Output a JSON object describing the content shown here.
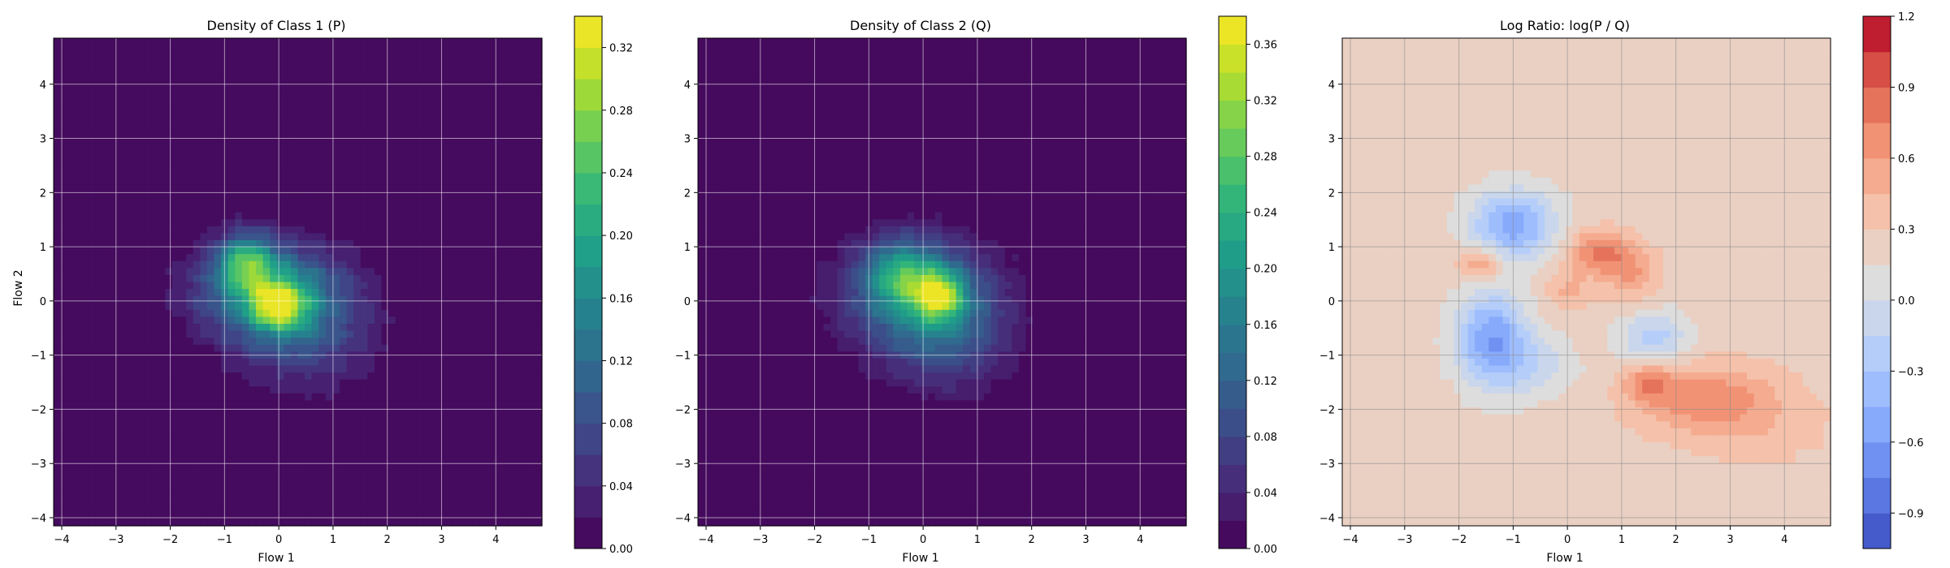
{
  "figure": {
    "panels": [
      {
        "title": "Density of Class 1 (P)",
        "xlabel": "Flow 1",
        "ylabel": "Flow 2"
      },
      {
        "title": "Density of Class 2 (Q)",
        "xlabel": "Flow 1",
        "ylabel": ""
      },
      {
        "title": "Log Ratio: log(P / Q)",
        "xlabel": "Flow 1",
        "ylabel": ""
      }
    ]
  },
  "chart_data": [
    {
      "type": "heatmap",
      "title": "Density of Class 1 (P)",
      "xlabel": "Flow 1",
      "ylabel": "Flow 2",
      "xlim": [
        -4.15,
        4.85
      ],
      "ylim": [
        -4.15,
        4.85
      ],
      "xticks": [
        -4,
        -3,
        -2,
        -1,
        0,
        1,
        2,
        3,
        4
      ],
      "yticks": [
        -4,
        -3,
        -2,
        -1,
        0,
        1,
        2,
        3,
        4
      ],
      "grid": true,
      "colormap": "viridis",
      "colorbar": {
        "min": 0.0,
        "max": 0.34,
        "ticks": [
          0.0,
          0.04,
          0.08,
          0.12,
          0.16,
          0.2,
          0.24,
          0.28,
          0.32
        ],
        "levels": 17
      },
      "description_values": {
        "peak_location": [
          0.0,
          0.0
        ],
        "peak_density": 0.33,
        "spread_direction": "negative correlation (upper-left to lower-right)"
      },
      "blobs": [
        {
          "cx": -0.6,
          "cy": 0.7,
          "amp": 0.17,
          "sx": 0.35,
          "sy": 0.35
        },
        {
          "cx": 0.0,
          "cy": -0.1,
          "amp": 0.2,
          "sx": 0.35,
          "sy": 0.3
        },
        {
          "cx": -0.2,
          "cy": 0.2,
          "amp": 0.16,
          "sx": 0.9,
          "sy": 0.6
        },
        {
          "cx": 0.5,
          "cy": -0.6,
          "amp": 0.07,
          "sx": 0.9,
          "sy": 0.7
        }
      ]
    },
    {
      "type": "heatmap",
      "title": "Density of Class 2 (Q)",
      "xlabel": "Flow 1",
      "ylabel": "",
      "xlim": [
        -4.15,
        4.85
      ],
      "ylim": [
        -4.15,
        4.85
      ],
      "xticks": [
        -4,
        -3,
        -2,
        -1,
        0,
        1,
        2,
        3,
        4
      ],
      "yticks": [
        -4,
        -3,
        -2,
        -1,
        0,
        1,
        2,
        3,
        4
      ],
      "grid": true,
      "colormap": "viridis",
      "colorbar": {
        "min": 0.0,
        "max": 0.38,
        "ticks": [
          0.0,
          0.04,
          0.08,
          0.12,
          0.16,
          0.2,
          0.24,
          0.28,
          0.32,
          0.36
        ],
        "levels": 19
      },
      "description_values": {
        "peak_location": [
          0.3,
          0.1
        ],
        "peak_density": 0.37,
        "spread_direction": "negative correlation (upper-left to lower-right)"
      },
      "blobs": [
        {
          "cx": 0.3,
          "cy": 0.1,
          "amp": 0.22,
          "sx": 0.3,
          "sy": 0.3
        },
        {
          "cx": -0.4,
          "cy": 0.5,
          "amp": 0.14,
          "sx": 0.45,
          "sy": 0.4
        },
        {
          "cx": -0.1,
          "cy": 0.1,
          "amp": 0.16,
          "sx": 0.9,
          "sy": 0.7
        },
        {
          "cx": 0.5,
          "cy": -0.7,
          "amp": 0.07,
          "sx": 0.8,
          "sy": 0.7
        }
      ]
    },
    {
      "type": "heatmap",
      "title": "Log Ratio: log(P / Q)",
      "xlabel": "Flow 1",
      "ylabel": "",
      "xlim": [
        -4.15,
        4.85
      ],
      "ylim": [
        -4.15,
        4.85
      ],
      "xticks": [
        -4,
        -3,
        -2,
        -1,
        0,
        1,
        2,
        3,
        4
      ],
      "yticks": [
        -4,
        -3,
        -2,
        -1,
        0,
        1,
        2,
        3,
        4
      ],
      "grid": true,
      "colormap": "coolwarm",
      "colorbar": {
        "min": -1.05,
        "max": 1.2,
        "ticks": [
          -0.9,
          -0.6,
          -0.3,
          0.0,
          0.3,
          0.6,
          0.9,
          1.2
        ],
        "tick_labels": [
          "−0.9",
          "−0.6",
          "−0.3",
          "0.0",
          "0.3",
          "0.6",
          "0.9",
          "1.2"
        ],
        "levels": 15
      },
      "description_values": {
        "background_value": 0.2,
        "negative_regions": [
          "upper-left of center (around (-1, 1.5))",
          "left of center (around (-1.5, -0.8))"
        ],
        "positive_regions": [
          "center-right (around (0.5, 0.8))",
          "lower-right (around (2.5, -1.8))"
        ]
      },
      "blobs": [
        {
          "cx": -1.0,
          "cy": 1.4,
          "amp": -0.75,
          "sx": 0.55,
          "sy": 0.45
        },
        {
          "cx": -1.4,
          "cy": -0.7,
          "amp": -0.8,
          "sx": 0.45,
          "sy": 0.6
        },
        {
          "cx": 0.6,
          "cy": 0.9,
          "amp": 0.55,
          "sx": 0.4,
          "sy": 0.3
        },
        {
          "cx": -1.6,
          "cy": 0.7,
          "amp": 0.45,
          "sx": 0.3,
          "sy": 0.2
        },
        {
          "cx": 1.2,
          "cy": 0.5,
          "amp": 0.35,
          "sx": 0.35,
          "sy": 0.35
        },
        {
          "cx": 1.6,
          "cy": -0.7,
          "amp": -0.45,
          "sx": 0.45,
          "sy": 0.35
        },
        {
          "cx": 1.5,
          "cy": -1.5,
          "amp": 0.45,
          "sx": 0.3,
          "sy": 0.25
        },
        {
          "cx": 2.5,
          "cy": -1.8,
          "amp": 0.45,
          "sx": 0.9,
          "sy": 0.45
        },
        {
          "cx": 3.5,
          "cy": -2.3,
          "amp": 0.15,
          "sx": 1.0,
          "sy": 0.6
        },
        {
          "cx": -0.6,
          "cy": -1.2,
          "amp": -0.3,
          "sx": 0.5,
          "sy": 0.4
        },
        {
          "cx": 0.0,
          "cy": 0.2,
          "amp": 0.25,
          "sx": 0.3,
          "sy": 0.3
        }
      ],
      "background": 0.22
    }
  ]
}
